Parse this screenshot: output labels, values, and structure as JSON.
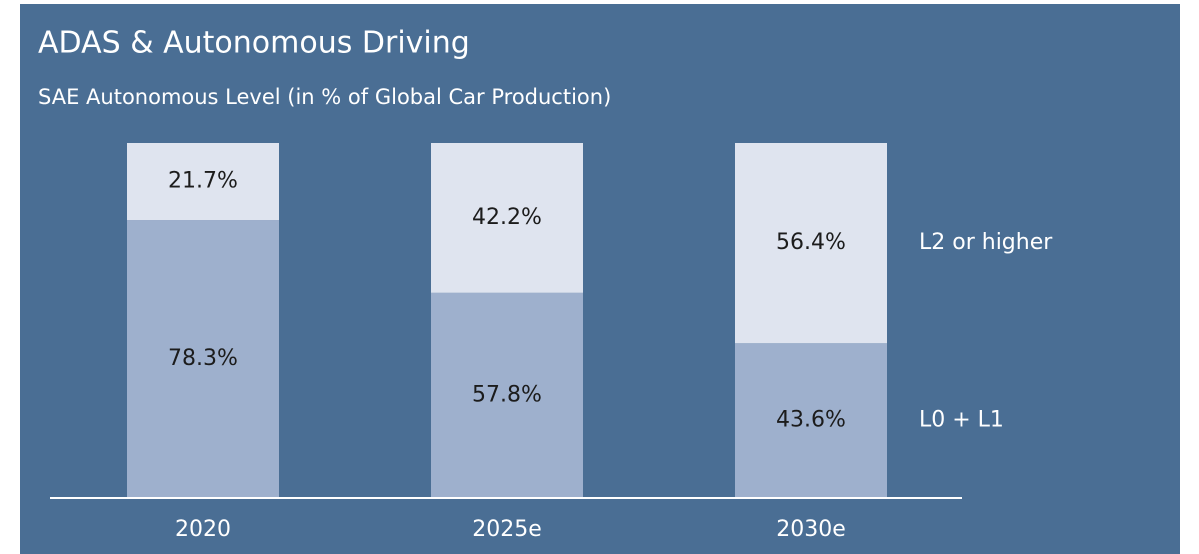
{
  "chart_data": {
    "type": "stacked_bar",
    "title": "ADAS & Autonomous Driving",
    "subtitle": "SAE Autonomous Level (in % of Global Car Production)",
    "categories": [
      "2020",
      "2025e",
      "2030e"
    ],
    "series": [
      {
        "name": "L0 + L1",
        "color": "#9eb0cd",
        "values": [
          78.3,
          57.8,
          43.6
        ],
        "value_labels": [
          "78.3%",
          "57.8%",
          "43.6%"
        ]
      },
      {
        "name": "L2 or higher",
        "color": "#dfe4ef",
        "values": [
          21.7,
          42.2,
          56.4
        ],
        "value_labels": [
          "21.7%",
          "42.2%",
          "56.4%"
        ]
      }
    ],
    "ylim": [
      0,
      100
    ]
  }
}
